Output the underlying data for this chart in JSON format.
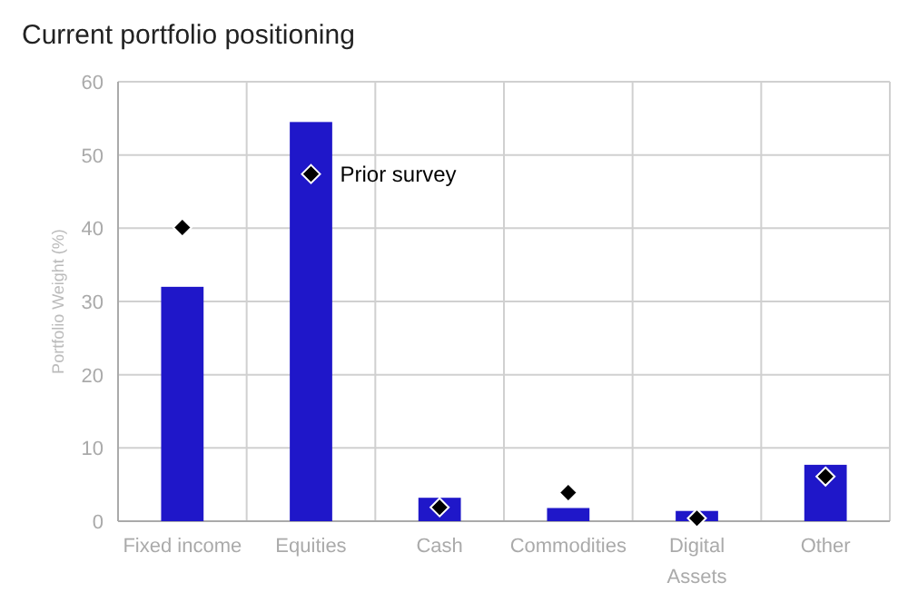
{
  "chart_data": {
    "type": "bar",
    "title": "Current portfolio positioning",
    "ylabel": "Portfolio Weight (%)",
    "categories": [
      "Fixed income",
      "Equities",
      "Cash",
      "Commodities",
      "Digital Assets",
      "Other"
    ],
    "series": [
      {
        "color": "#1f17c9",
        "values": [
          32,
          54.5,
          3.2,
          1.8,
          1.4,
          7.7
        ]
      },
      {
        "type": "scatter",
        "name": "Prior survey",
        "color": "#000000",
        "marker": "diamond",
        "values": [
          40.1,
          47.4,
          1.9,
          3.9,
          0.4,
          6.1
        ]
      }
    ],
    "ylim": [
      0,
      60
    ],
    "yticks": [
      0,
      10,
      20,
      30,
      40,
      50,
      60
    ],
    "grid": true
  }
}
